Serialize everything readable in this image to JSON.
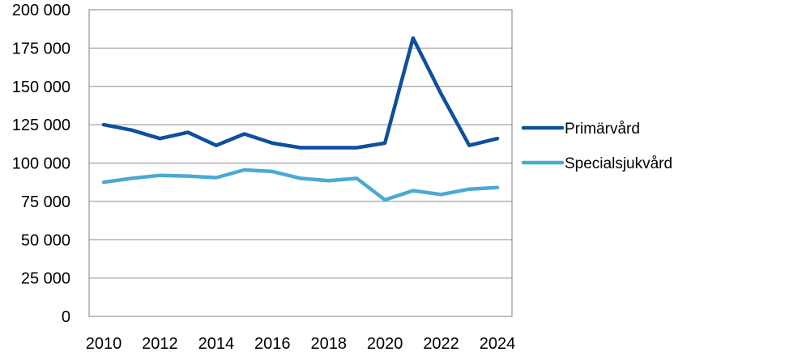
{
  "chart_data": {
    "type": "line",
    "title": "",
    "xlabel": "",
    "ylabel": "",
    "x": [
      2010,
      2011,
      2012,
      2013,
      2014,
      2015,
      2016,
      2017,
      2018,
      2019,
      2020,
      2021,
      2022,
      2023,
      2024
    ],
    "x_tick_labels": [
      "2010",
      "2012",
      "2014",
      "2016",
      "2018",
      "2020",
      "2022",
      "2024"
    ],
    "y_tick_labels": [
      "0",
      "25 000",
      "50 000",
      "75 000",
      "100 000",
      "125 000",
      "150 000",
      "175 000",
      "200 000"
    ],
    "ylim": [
      0,
      200000
    ],
    "xlim": [
      2010,
      2024
    ],
    "grid": "horizontal",
    "legend_position": "right",
    "series": [
      {
        "name": "Primärvård",
        "color": "#0E4FA0",
        "values": [
          125000,
          121500,
          116000,
          120000,
          111500,
          119000,
          113000,
          110000,
          110000,
          110000,
          113000,
          181500,
          145000,
          111500,
          116000
        ]
      },
      {
        "name": "Specialsjukvård",
        "color": "#4AAAD2",
        "values": [
          87500,
          90000,
          92000,
          91500,
          90500,
          95500,
          94500,
          90000,
          88500,
          90000,
          76000,
          82000,
          79500,
          83000,
          84000
        ]
      }
    ]
  }
}
